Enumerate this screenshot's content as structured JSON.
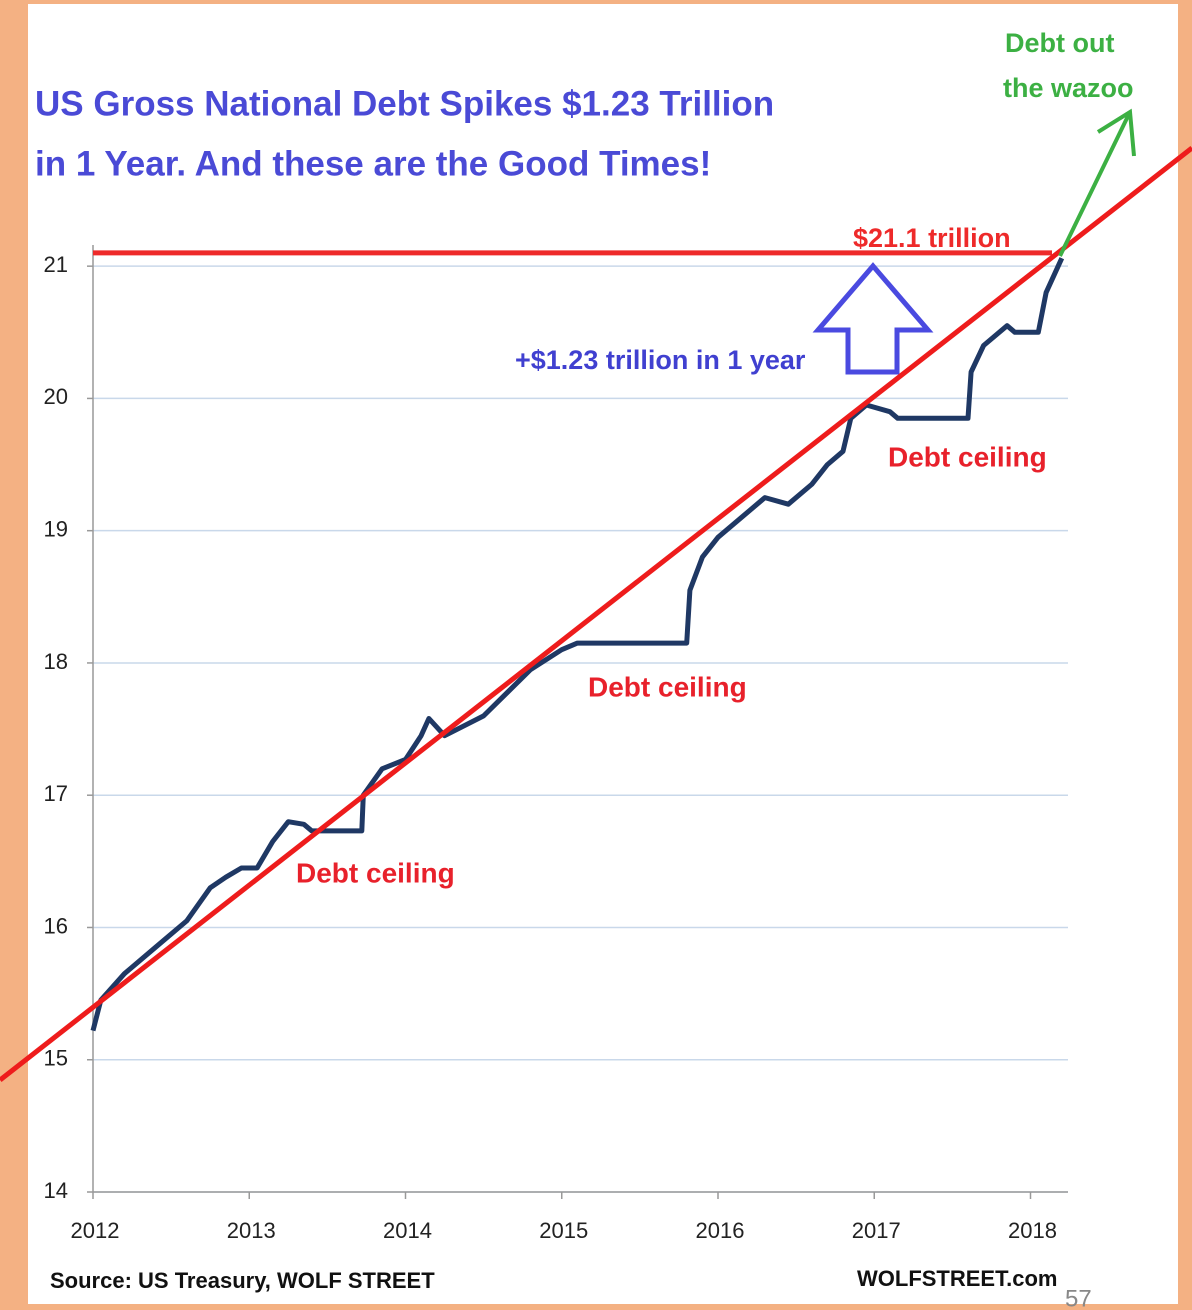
{
  "chart_data": {
    "type": "line",
    "title": [
      "US Gross National Debt Spikes $1.23 Trillion",
      "in 1 Year. And these are the Good Times!"
    ],
    "series": [
      {
        "color": "#1f3864",
        "x": [
          2012.0,
          2012.05,
          2012.2,
          2012.4,
          2012.6,
          2012.75,
          2012.85,
          2012.95,
          2013.05,
          2013.15,
          2013.25,
          2013.35,
          2013.4,
          2013.72,
          2013.73,
          2013.85,
          2014.0,
          2014.1,
          2014.15,
          2014.25,
          2014.5,
          2014.8,
          2015.0,
          2015.1,
          2015.8,
          2015.82,
          2015.9,
          2016.0,
          2016.3,
          2016.45,
          2016.6,
          2016.7,
          2016.8,
          2016.85,
          2016.95,
          2017.1,
          2017.15,
          2017.6,
          2017.62,
          2017.7,
          2017.85,
          2017.9,
          2018.05,
          2018.1,
          2018.2
        ],
        "values": [
          15.22,
          15.45,
          15.65,
          15.85,
          16.05,
          16.3,
          16.38,
          16.45,
          16.45,
          16.65,
          16.8,
          16.78,
          16.73,
          16.73,
          17.0,
          17.2,
          17.27,
          17.45,
          17.58,
          17.45,
          17.6,
          17.95,
          18.1,
          18.15,
          18.15,
          18.55,
          18.8,
          18.95,
          19.25,
          19.2,
          19.35,
          19.5,
          19.6,
          19.85,
          19.95,
          19.9,
          19.85,
          19.85,
          20.2,
          20.4,
          20.55,
          20.5,
          20.5,
          20.8,
          21.06
        ]
      }
    ],
    "xlim": [
      2012,
      2018.24
    ],
    "xticks": [
      2012,
      2013,
      2014,
      2015,
      2016,
      2017,
      2018
    ],
    "ylim": [
      14,
      21.16
    ],
    "yticks": [
      14,
      15,
      16,
      17,
      18,
      19,
      20,
      21
    ],
    "grid": true,
    "reference_line": {
      "value": 21.1,
      "label": "$21.1 trillion",
      "color": "#ee2a2a"
    },
    "annotations": [
      "+$1.23 trillion in 1 year",
      "Debt ceiling",
      "Debt ceiling",
      "Debt ceiling",
      "Debt out",
      "the wazoo"
    ],
    "source": "Source: US Treasury, WOLF STREET",
    "credit": "WOLFSTREET.com",
    "page_number": "57"
  }
}
